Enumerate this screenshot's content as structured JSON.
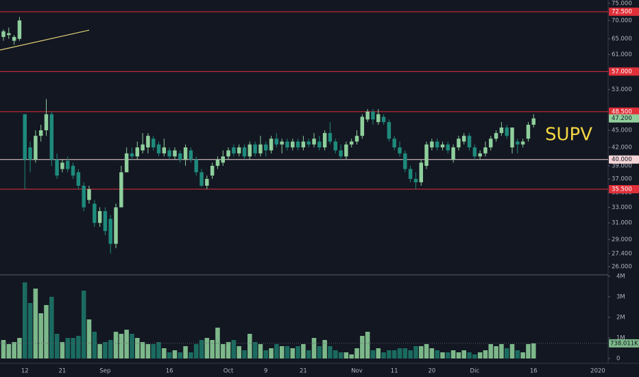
{
  "chart_data": {
    "type": "candlestick",
    "annotation": "SUPV",
    "log_scale": true,
    "up_color": "#8fcf9c",
    "down_color": "#1e8a7c",
    "volume_up_color": "#7db88a",
    "volume_down_color": "#1b6b60",
    "categories": [
      null,
      null,
      null,
      null,
      "12",
      null,
      null,
      null,
      null,
      null,
      null,
      "21",
      null,
      null,
      null,
      null,
      null,
      null,
      null,
      "Sep",
      null,
      null,
      null,
      null,
      null,
      null,
      null,
      null,
      null,
      null,
      null,
      "16",
      null,
      null,
      null,
      null,
      null,
      null,
      null,
      null,
      null,
      null,
      "Oct",
      null,
      null,
      null,
      null,
      null,
      null,
      "9",
      null,
      null,
      null,
      null,
      null,
      null,
      "21",
      null,
      null,
      null,
      null,
      null,
      null,
      null,
      null,
      null,
      "Nov",
      null,
      null,
      null,
      null,
      null,
      null,
      "11",
      null,
      null,
      null,
      null,
      null,
      null,
      "20",
      null,
      null,
      null,
      null,
      null,
      null,
      null,
      "Dic",
      null,
      null,
      null,
      null,
      null,
      null,
      null,
      null,
      null,
      null,
      "16",
      null,
      null,
      null,
      null,
      null,
      null,
      null,
      null,
      null,
      null,
      null,
      "2020"
    ],
    "open": [
      65.5,
      66,
      64.5,
      65,
      48,
      42,
      40,
      44,
      45,
      48,
      40,
      38.5,
      39.8,
      39,
      38,
      36,
      34,
      33.5,
      31,
      32.5,
      31.5,
      28.5,
      33,
      38,
      41,
      40.5,
      41.5,
      42,
      43.5,
      42.5,
      41,
      41.5,
      40.5,
      41,
      40,
      41.5,
      40,
      38,
      36,
      37.5,
      39,
      39.5,
      40.5,
      42,
      41,
      42,
      40.5,
      42.5,
      41,
      42.5,
      41.5,
      43.5,
      42.5,
      43,
      42,
      43,
      42,
      43,
      42.5,
      43,
      42,
      44.5,
      43,
      41.5,
      40.5,
      42.5,
      43,
      44,
      47,
      48.5,
      46.5,
      47.5,
      46.5,
      43.5,
      42,
      41,
      38.5,
      37,
      36.5,
      39,
      42,
      43,
      42,
      42.5,
      40,
      42,
      43,
      44,
      42,
      40.5,
      41,
      42,
      43.5,
      44.5,
      45.5,
      42,
      43,
      42.5,
      43.5,
      46,
      null,
      null,
      null,
      null,
      null,
      null,
      null,
      null,
      null,
      null,
      null,
      null
    ],
    "high": [
      67.5,
      68,
      66,
      71,
      48,
      43,
      45,
      46,
      51,
      48.5,
      41,
      40,
      40.5,
      39.5,
      38.5,
      36.5,
      36,
      34,
      33,
      33,
      32,
      33.5,
      39,
      42,
      42,
      43,
      44.5,
      44.5,
      44,
      43,
      43.5,
      42,
      42,
      41.5,
      42.5,
      42,
      40.5,
      38.5,
      37.5,
      39.5,
      40.5,
      41.5,
      42,
      42.5,
      42.5,
      42.5,
      43,
      43,
      44,
      43,
      44,
      44.5,
      43.5,
      43.5,
      43.5,
      43.5,
      44,
      43.5,
      44.5,
      44,
      45,
      46.5,
      43.5,
      42.5,
      43,
      43.5,
      45,
      48,
      49,
      49,
      49,
      48,
      47,
      44,
      43,
      41.5,
      39,
      38,
      40,
      43,
      43.5,
      43.5,
      43,
      43,
      42.5,
      44,
      44.5,
      44.5,
      42.5,
      41.5,
      43,
      44,
      45,
      46.5,
      46,
      45.5,
      43.5,
      43.5,
      46.5,
      48,
      null,
      null,
      null,
      null,
      null,
      null,
      null,
      null,
      null,
      null,
      null,
      null
    ],
    "low": [
      64.5,
      65,
      63.5,
      64.5,
      35.5,
      38,
      39.5,
      43,
      44,
      39,
      37,
      38,
      38,
      37,
      35.5,
      32.5,
      33.5,
      30.5,
      30.5,
      29.5,
      27.4,
      28,
      33,
      38,
      40,
      40,
      41,
      41,
      41.5,
      40.5,
      40.5,
      40,
      40,
      39.5,
      39,
      39.5,
      37.5,
      35.8,
      35.5,
      37,
      38.5,
      39,
      40,
      40.5,
      40.5,
      40,
      40,
      40.5,
      40.5,
      40.5,
      41,
      42,
      41,
      41.5,
      41.5,
      41.5,
      41.5,
      42,
      42,
      41.5,
      41.5,
      42.5,
      41,
      40,
      40,
      42,
      42.5,
      43.5,
      46.5,
      46,
      46,
      46,
      43,
      41.5,
      40.5,
      38,
      36.5,
      35.5,
      36,
      38.5,
      41.5,
      41.5,
      41.5,
      41,
      39.5,
      41.5,
      42.5,
      41.5,
      40,
      40,
      40.5,
      41.5,
      43,
      44,
      43.5,
      41,
      41,
      42,
      43,
      45.5,
      null,
      null,
      null,
      null,
      null,
      null,
      null,
      null,
      null,
      null,
      null,
      null
    ],
    "close": [
      67,
      66.5,
      65.5,
      70,
      40,
      40,
      44,
      45,
      48,
      40,
      37.5,
      39.5,
      38.5,
      37.5,
      36,
      33,
      35.5,
      31,
      32.5,
      30,
      28.5,
      33,
      38,
      41,
      40.5,
      42,
      42.5,
      44,
      42,
      41,
      42,
      40.5,
      41.5,
      40,
      42,
      40,
      38,
      36,
      37,
      39,
      40,
      40.5,
      41.5,
      41,
      42,
      40.5,
      42.5,
      41,
      42.5,
      41.5,
      43.5,
      42.5,
      43,
      42,
      43,
      42,
      43,
      42.5,
      43.5,
      42,
      44.5,
      43,
      41.5,
      40.5,
      42.5,
      43,
      44,
      47.5,
      48.5,
      47,
      48,
      46.5,
      43.5,
      42,
      41,
      38.5,
      37,
      36.5,
      39.5,
      42.5,
      43,
      42,
      42.5,
      41.5,
      42,
      43.5,
      44,
      42,
      40.5,
      41,
      42,
      43.5,
      44.5,
      45.5,
      44,
      45.5,
      42.5,
      43,
      46,
      47.2,
      null,
      null,
      null,
      null,
      null,
      null,
      null,
      null,
      null,
      null,
      null,
      null
    ],
    "volume": [
      0.9,
      0.7,
      0.8,
      1.0,
      3.7,
      2.7,
      3.4,
      2.2,
      2.6,
      3.0,
      1.2,
      0.8,
      1.0,
      1.0,
      1.1,
      3.3,
      1.9,
      1.3,
      0.7,
      0.8,
      0.9,
      1.3,
      1.2,
      1.4,
      1.2,
      1.0,
      0.8,
      0.7,
      0.7,
      0.8,
      0.5,
      0.3,
      0.4,
      0.3,
      0.6,
      0.3,
      0.7,
      0.9,
      1.0,
      0.9,
      1.5,
      0.7,
      0.8,
      0.9,
      0.6,
      0.4,
      1.2,
      0.8,
      0.7,
      0.4,
      0.5,
      0.7,
      0.6,
      0.6,
      0.5,
      0.6,
      0.7,
      0.4,
      1.0,
      0.6,
      0.9,
      0.6,
      0.4,
      0.3,
      0.3,
      0.2,
      0.5,
      1.1,
      1.3,
      0.4,
      0.5,
      0.3,
      0.4,
      0.4,
      0.5,
      0.5,
      0.4,
      0.6,
      0.6,
      0.7,
      0.5,
      0.4,
      0.3,
      0.3,
      0.4,
      0.3,
      0.4,
      0.3,
      0.2,
      0.3,
      0.4,
      0.7,
      0.6,
      0.7,
      0.5,
      0.7,
      0.4,
      0.3,
      0.7,
      0.738011,
      null,
      null,
      null,
      null,
      null,
      null,
      null,
      null,
      null,
      null,
      null,
      null
    ],
    "volume_last_label": {
      "value": 0.738011,
      "label": "738.011K"
    },
    "ylim": [
      25.5,
      76
    ],
    "yticks": [
      {
        "value": 75,
        "label": "75.000"
      },
      {
        "value": 70,
        "label": "70.000"
      },
      {
        "value": 65,
        "label": "65.000"
      },
      {
        "value": 61,
        "label": "61.000"
      },
      {
        "value": 53,
        "label": "53.000"
      },
      {
        "value": 45,
        "label": "45.000"
      },
      {
        "value": 42,
        "label": "42.000"
      },
      {
        "value": 39,
        "label": "39.000"
      },
      {
        "value": 37,
        "label": "37.000"
      },
      {
        "value": 35,
        "label": "35.000"
      },
      {
        "value": 33,
        "label": "33.000"
      },
      {
        "value": 31,
        "label": "31.000"
      },
      {
        "value": 29,
        "label": "29.000"
      },
      {
        "value": 27.4,
        "label": "27.400"
      },
      {
        "value": 26,
        "label": "26.000"
      }
    ],
    "levels": [
      {
        "value": 72.5,
        "label": "72.500",
        "color": "#e0303a"
      },
      {
        "value": 57,
        "label": "57.000",
        "color": "#e0303a"
      },
      {
        "value": 48.5,
        "label": "48.500",
        "color": "#e0303a"
      },
      {
        "value": 40,
        "label": "40.000",
        "color": "#f3d5d8"
      },
      {
        "value": 35.5,
        "label": "35.500",
        "color": "#e0303a"
      }
    ],
    "last_price": {
      "value": 47.2,
      "label": "47.200",
      "color": "#8fcf9c"
    },
    "vlim": [
      0,
      4.2
    ],
    "vticks": [
      {
        "value": 4,
        "label": "4M"
      },
      {
        "value": 3,
        "label": "3M"
      },
      {
        "value": 2,
        "label": "2M"
      },
      {
        "value": 1,
        "label": "1M"
      },
      0
    ]
  }
}
